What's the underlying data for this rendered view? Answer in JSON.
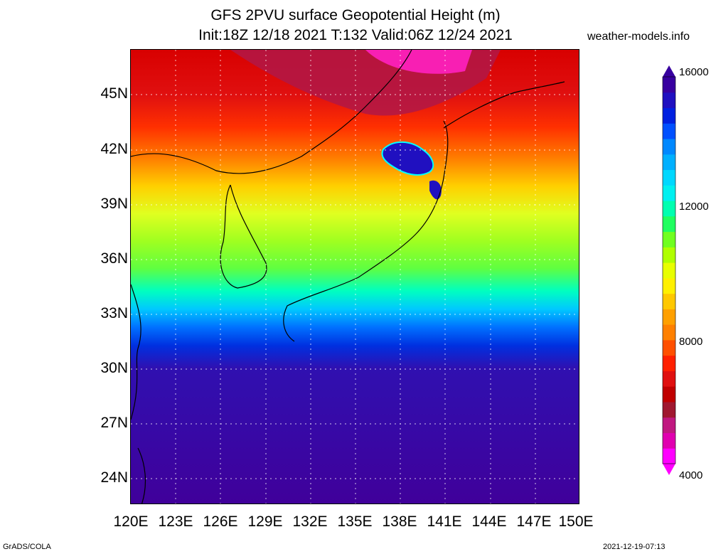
{
  "header": {
    "line1": "GFS 2PVU surface Geopotential Height (m)",
    "line2": "Init:18Z 12/18 2021 T:132 Valid:06Z 12/24 2021",
    "site": "weather-models.info"
  },
  "axes": {
    "lat_labels": [
      "45N",
      "42N",
      "39N",
      "36N",
      "33N",
      "30N",
      "27N",
      "24N"
    ],
    "lon_labels": [
      "120E",
      "123E",
      "126E",
      "129E",
      "132E",
      "135E",
      "138E",
      "141E",
      "144E",
      "147E",
      "150E"
    ]
  },
  "colorbar": {
    "labels": [
      "16000",
      "12000",
      "8000",
      "4000"
    ],
    "colors": [
      "#ff00ff",
      "#e000b0",
      "#c01880",
      "#a01830",
      "#c00000",
      "#e01010",
      "#ff2000",
      "#ff5000",
      "#ff8000",
      "#ffa000",
      "#ffc800",
      "#fff000",
      "#e8ff00",
      "#b0ff00",
      "#70ff20",
      "#20ff60",
      "#00ffb0",
      "#00f0f0",
      "#00d8ff",
      "#00b0ff",
      "#0088ff",
      "#0050ff",
      "#0020e0",
      "#2010c0",
      "#3800a0"
    ]
  },
  "footer": {
    "left": "GrADS/COLA",
    "right": "2021-12-19-07:13"
  }
}
